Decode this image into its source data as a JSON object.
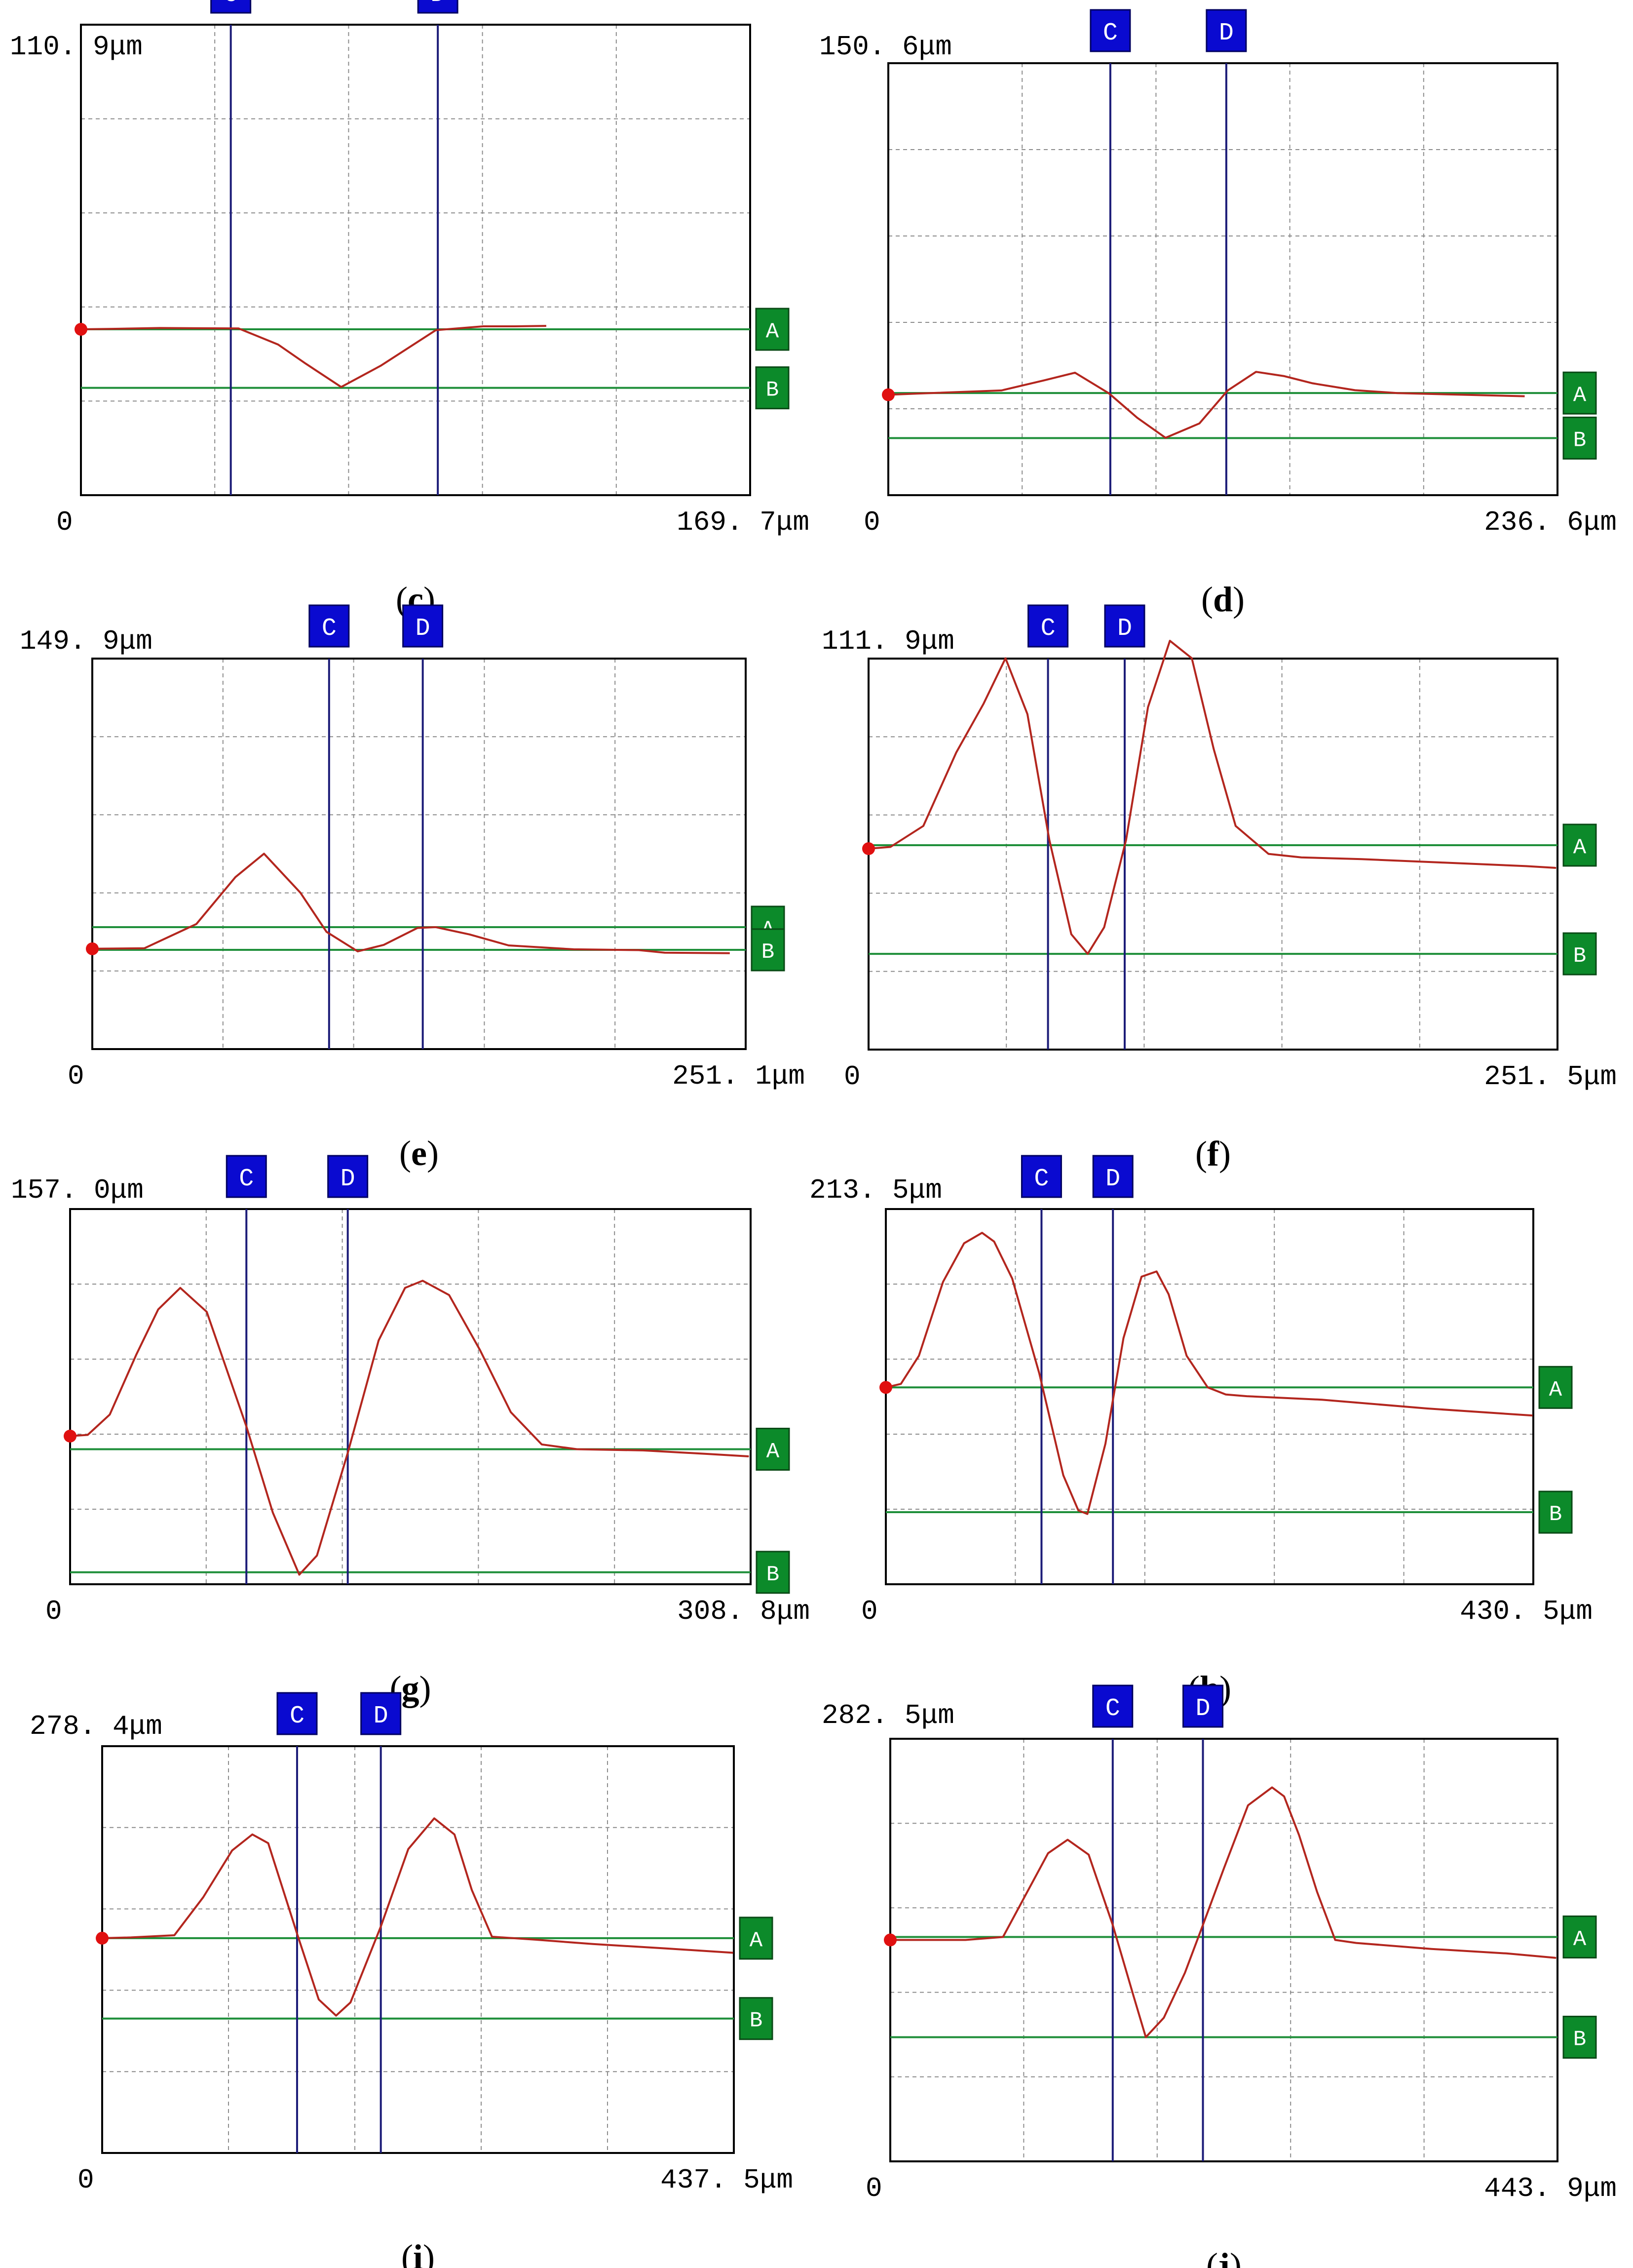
{
  "colors": {
    "frame": "#000000",
    "grid": "#8c8c8c",
    "cursor_line": "#1c1c78",
    "cursor_box": "#0a0ad0",
    "cursor_text": "#ffffff",
    "level_line": "#1f8f3a",
    "level_box": "#0c8a2a",
    "profile": "#b3261e",
    "start_dot": "#e01010"
  },
  "chart_data": [
    {
      "type": "line",
      "panel_label": "c",
      "y_max_label": "110. 9μm",
      "y_min_label": "0",
      "x_max_label": "169. 7μm",
      "ylim": [
        0,
        110.9
      ],
      "xlim": [
        0,
        169.7
      ],
      "cursors": [
        {
          "label": "C",
          "x": 38.0
        },
        {
          "label": "D",
          "x": 90.5
        }
      ],
      "levels": [
        {
          "label": "A",
          "y": 39.1
        },
        {
          "label": "B",
          "y": 25.3
        }
      ],
      "series": [
        {
          "x": [
            0,
            8,
            20,
            40,
            50,
            57,
            66,
            76,
            90,
            102,
            110,
            118
          ],
          "y": [
            39.1,
            39.2,
            39.4,
            39.3,
            35.5,
            31.0,
            25.5,
            30.5,
            38.9,
            39.8,
            39.8,
            39.9
          ]
        }
      ]
    },
    {
      "type": "line",
      "panel_label": "d",
      "y_max_label": "150. 6μm",
      "y_min_label": "0",
      "x_max_label": "236. 6μm",
      "ylim": [
        0,
        150.6
      ],
      "xlim": [
        0,
        236.6
      ],
      "cursors": [
        {
          "label": "C",
          "x": 78.5
        },
        {
          "label": "D",
          "x": 119.5
        }
      ],
      "levels": [
        {
          "label": "A",
          "y": 35.6
        },
        {
          "label": "B",
          "y": 19.9
        }
      ],
      "series": [
        {
          "x": [
            0,
            10,
            40,
            55,
            66,
            78,
            88,
            98,
            110,
            120,
            130,
            140,
            150,
            165,
            180,
            200,
            225
          ],
          "y": [
            35.0,
            35.4,
            36.5,
            40.0,
            42.7,
            35.5,
            27.0,
            20.0,
            25.0,
            36.5,
            43.0,
            41.5,
            39.0,
            36.6,
            35.6,
            35.1,
            34.5
          ]
        }
      ]
    },
    {
      "type": "line",
      "panel_label": "e",
      "y_max_label": "149. 9μm",
      "y_min_label": "0",
      "x_max_label": "251. 1μm",
      "ylim": [
        0,
        149.9
      ],
      "xlim": [
        0,
        251.1
      ],
      "cursors": [
        {
          "label": "C",
          "x": 91.0
        },
        {
          "label": "D",
          "x": 127.0
        }
      ],
      "levels": [
        {
          "label": "A",
          "y": 46.8
        },
        {
          "label": "B",
          "y": 38.1
        }
      ],
      "series": [
        {
          "x": [
            0,
            20,
            40,
            55,
            66,
            80,
            90,
            102,
            112,
            125,
            132,
            145,
            160,
            185,
            210,
            220,
            245
          ],
          "y": [
            38.5,
            38.7,
            48.0,
            66.0,
            75.0,
            60.0,
            45.0,
            37.5,
            40.0,
            46.5,
            46.8,
            44.0,
            39.8,
            38.3,
            38.0,
            37.0,
            36.8
          ]
        }
      ]
    },
    {
      "type": "line",
      "panel_label": "f",
      "y_max_label": "111. 9μm",
      "y_min_label": "0",
      "x_max_label": "251. 5μm",
      "ylim": [
        0,
        111.9
      ],
      "xlim": [
        0,
        251.5
      ],
      "cursors": [
        {
          "label": "C",
          "x": 65.5
        },
        {
          "label": "D",
          "x": 93.5
        }
      ],
      "levels": [
        {
          "label": "A",
          "y": 58.5
        },
        {
          "label": "B",
          "y": 27.4
        }
      ],
      "series": [
        {
          "x": [
            0,
            8,
            20,
            32,
            42,
            50,
            58,
            66,
            74,
            80,
            86,
            94,
            102,
            110,
            118,
            126,
            134,
            146,
            158,
            180,
            210,
            240,
            251
          ],
          "y": [
            57.5,
            58.0,
            64.0,
            85.0,
            99.0,
            112.0,
            96.0,
            60.0,
            33.0,
            27.4,
            35.0,
            60.0,
            98.0,
            117.0,
            112.0,
            86.0,
            64.0,
            56.0,
            55.0,
            54.5,
            53.5,
            52.5,
            52.0
          ]
        }
      ]
    },
    {
      "type": "line",
      "panel_label": "g",
      "y_max_label": "157. 0μm",
      "y_min_label": "0",
      "x_max_label": "308. 8μm",
      "ylim": [
        0,
        157.0
      ],
      "xlim": [
        0,
        308.8
      ],
      "cursors": [
        {
          "label": "C",
          "x": 80.0
        },
        {
          "label": "D",
          "x": 126.0
        }
      ],
      "levels": [
        {
          "label": "A",
          "y": 56.5
        },
        {
          "label": "B",
          "y": 5.0
        }
      ],
      "series": [
        {
          "x": [
            0,
            8,
            18,
            30,
            40,
            50,
            62,
            80,
            92,
            104,
            112,
            126,
            140,
            152,
            160,
            172,
            186,
            200,
            214,
            230,
            260,
            290,
            308
          ],
          "y": [
            62.0,
            62.5,
            71.0,
            96.0,
            115.0,
            124.0,
            114.0,
            66.0,
            30.0,
            4.0,
            12.0,
            55.0,
            102.0,
            124.0,
            127.0,
            121.0,
            98.0,
            72.0,
            58.5,
            56.5,
            56.0,
            54.5,
            53.5
          ]
        }
      ]
    },
    {
      "type": "line",
      "panel_label": "h",
      "y_max_label": "213. 5μm",
      "y_min_label": "0",
      "x_max_label": "430. 5μm",
      "ylim": [
        0,
        213.5
      ],
      "xlim": [
        0,
        430.5
      ],
      "cursors": [
        {
          "label": "C",
          "x": 103.5
        },
        {
          "label": "D",
          "x": 151.0
        }
      ],
      "levels": [
        {
          "label": "A",
          "y": 112.0
        },
        {
          "label": "B",
          "y": 41.0
        }
      ],
      "series": [
        {
          "x": [
            0,
            10,
            22,
            38,
            52,
            64,
            72,
            84,
            102,
            118,
            128,
            134,
            146,
            158,
            170,
            180,
            188,
            200,
            214,
            226,
            240,
            290,
            360,
            430
          ],
          "y": [
            112.0,
            114.0,
            130.0,
            172.0,
            194.0,
            200.0,
            195.0,
            174.0,
            120.0,
            62.0,
            42.0,
            40.0,
            80.0,
            140.0,
            175.0,
            178.0,
            165.0,
            130.0,
            112.0,
            108.0,
            107.0,
            105.0,
            100.0,
            96.0
          ]
        }
      ]
    },
    {
      "type": "line",
      "panel_label": "i",
      "y_max_label": "278. 4μm",
      "y_min_label": "0",
      "x_max_label": "437. 5μm",
      "ylim": [
        0,
        278.4
      ],
      "xlim": [
        0,
        437.5
      ],
      "cursors": [
        {
          "label": "C",
          "x": 135.0
        },
        {
          "label": "D",
          "x": 193.0
        }
      ],
      "levels": [
        {
          "label": "A",
          "y": 147.0
        },
        {
          "label": "B",
          "y": 92.0
        }
      ],
      "series": [
        {
          "x": [
            0,
            20,
            50,
            70,
            90,
            104,
            115,
            135,
            150,
            162,
            172,
            193,
            212,
            230,
            244,
            256,
            270,
            300,
            340,
            390,
            437
          ],
          "y": [
            147.0,
            147.5,
            149.0,
            175.0,
            207.0,
            218.0,
            212.0,
            150.0,
            105.0,
            94.0,
            103.0,
            155.0,
            208.0,
            229.0,
            218.0,
            180.0,
            148.0,
            146.0,
            143.0,
            140.0,
            137.0
          ]
        }
      ]
    },
    {
      "type": "line",
      "panel_label": "j",
      "y_max_label": "282. 5μm",
      "y_min_label": "0",
      "x_max_label": "443. 9μm",
      "ylim": [
        0,
        282.5
      ],
      "xlim": [
        0,
        443.9
      ],
      "cursors": [
        {
          "label": "C",
          "x": 148.0
        },
        {
          "label": "D",
          "x": 208.0
        }
      ],
      "levels": [
        {
          "label": "A",
          "y": 150.0
        },
        {
          "label": "B",
          "y": 83.0
        }
      ],
      "series": [
        {
          "x": [
            0,
            20,
            50,
            75,
            90,
            105,
            118,
            132,
            148,
            162,
            170,
            182,
            196,
            208,
            222,
            238,
            254,
            262,
            272,
            284,
            296,
            310,
            360,
            410,
            443
          ],
          "y": [
            148.0,
            148.0,
            148.0,
            150.0,
            178.0,
            206.0,
            215.0,
            205.0,
            158.0,
            110.0,
            83.0,
            96.0,
            126.0,
            158.0,
            196.0,
            238.0,
            250.0,
            244.0,
            218.0,
            180.0,
            148.0,
            146.0,
            142.0,
            139.0,
            136.0
          ]
        }
      ]
    }
  ]
}
